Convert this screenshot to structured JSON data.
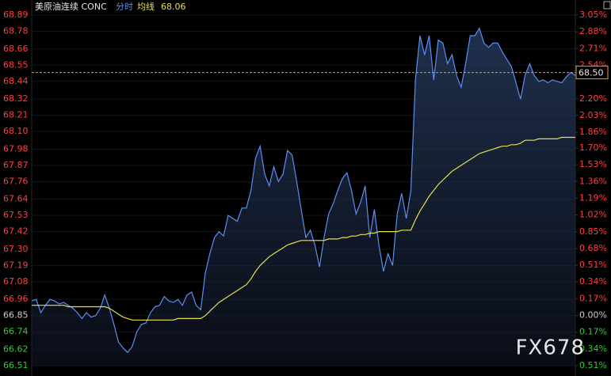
{
  "chart_data": {
    "type": "line",
    "title": "美原油连续 CONC",
    "series_label": "分时",
    "avg_label": "均线",
    "avg_value_label": "68.06",
    "watermark": "FX678",
    "grid": true,
    "up_color": "#ff4040",
    "down_color": "#33cc33",
    "flat_color": "#cfcfcf",
    "ylim": [
      66.51,
      68.89
    ],
    "yticks": [
      68.89,
      68.78,
      68.66,
      68.55,
      68.44,
      68.32,
      68.21,
      {
        "value": 68.1,
        "label": "68.10"
      },
      67.98,
      67.87,
      67.76,
      67.64,
      67.53,
      67.42,
      {
        "value": 67.3,
        "label": "67.30"
      },
      67.19,
      67.08,
      66.96,
      66.85,
      66.74,
      66.62,
      66.51
    ],
    "y2lim": [
      -0.51,
      3.05
    ],
    "y2ticks": [
      {
        "value": 3.05,
        "label": "3.05%"
      },
      {
        "value": 2.88,
        "label": "2.88%"
      },
      {
        "value": 2.71,
        "label": "2.71%"
      },
      {
        "value": 2.54,
        "label": "2.54%"
      },
      {
        "value": 2.2,
        "label": "2.20%"
      },
      {
        "value": 2.03,
        "label": "2.03%"
      },
      {
        "value": 1.86,
        "label": "1.86%"
      },
      {
        "value": 1.7,
        "label": "1.70%"
      },
      {
        "value": 1.53,
        "label": "1.53%"
      },
      {
        "value": 1.36,
        "label": "1.36%"
      },
      {
        "value": 1.19,
        "label": "1.19%"
      },
      {
        "value": 1.02,
        "label": "1.02%"
      },
      {
        "value": 0.85,
        "label": "0.85%"
      },
      {
        "value": 0.68,
        "label": "0.68%"
      },
      {
        "value": 0.51,
        "label": "0.51%"
      },
      {
        "value": 0.34,
        "label": "0.34%"
      },
      {
        "value": 0.17,
        "label": "0.17%"
      },
      {
        "value": 0,
        "label": "0.00%"
      },
      {
        "value": -0.17,
        "label": "0.17%"
      },
      {
        "value": -0.34,
        "label": "0.34%"
      },
      {
        "value": -0.51,
        "label": "0.51%"
      }
    ],
    "last_price": {
      "value": 68.5,
      "label": "68.50"
    },
    "series": [
      {
        "name": "分时",
        "color": "#5b8ff0",
        "fill": true,
        "values": [
          66.95,
          66.96,
          66.87,
          66.92,
          66.96,
          66.95,
          66.93,
          66.94,
          66.92,
          66.9,
          66.87,
          66.83,
          66.87,
          66.84,
          66.85,
          66.9,
          66.99,
          66.9,
          66.79,
          66.67,
          66.63,
          66.6,
          66.64,
          66.74,
          66.79,
          66.8,
          66.87,
          66.91,
          66.92,
          66.98,
          66.95,
          66.94,
          66.96,
          66.92,
          66.99,
          67.01,
          66.92,
          66.89,
          67.14,
          67.27,
          67.38,
          67.42,
          67.39,
          67.53,
          67.51,
          67.49,
          67.58,
          67.58,
          67.7,
          67.92,
          68.0,
          67.81,
          67.73,
          67.86,
          67.76,
          67.81,
          67.97,
          67.94,
          67.76,
          67.57,
          67.38,
          67.43,
          67.33,
          67.18,
          67.38,
          67.54,
          67.61,
          67.7,
          67.78,
          67.82,
          67.7,
          67.54,
          67.62,
          67.73,
          67.38,
          67.57,
          67.33,
          67.15,
          67.27,
          67.19,
          67.54,
          67.68,
          67.51,
          67.7,
          68.45,
          68.75,
          68.62,
          68.75,
          68.45,
          68.72,
          68.7,
          68.56,
          68.62,
          68.48,
          68.4,
          68.56,
          68.75,
          68.75,
          68.8,
          68.7,
          68.67,
          68.7,
          68.7,
          68.64,
          68.59,
          68.54,
          68.43,
          68.32,
          68.48,
          68.56,
          68.48,
          68.44,
          68.45,
          68.43,
          68.45,
          68.44,
          68.43,
          68.47,
          68.5,
          68.48
        ]
      },
      {
        "name": "均线",
        "color": "#e8e04a",
        "fill": false,
        "values": [
          66.92,
          66.92,
          66.92,
          66.92,
          66.92,
          66.92,
          66.92,
          66.92,
          66.91,
          66.91,
          66.91,
          66.91,
          66.91,
          66.91,
          66.91,
          66.91,
          66.91,
          66.9,
          66.88,
          66.86,
          66.84,
          66.83,
          66.82,
          66.82,
          66.82,
          66.82,
          66.82,
          66.82,
          66.82,
          66.82,
          66.82,
          66.82,
          66.83,
          66.83,
          66.83,
          66.83,
          66.83,
          66.83,
          66.85,
          66.88,
          66.91,
          66.94,
          66.96,
          66.98,
          67.0,
          67.02,
          67.04,
          67.06,
          67.1,
          67.15,
          67.19,
          67.22,
          67.25,
          67.27,
          67.29,
          67.31,
          67.33,
          67.34,
          67.35,
          67.36,
          67.36,
          67.36,
          67.36,
          67.36,
          67.36,
          67.37,
          67.37,
          67.37,
          67.38,
          67.38,
          67.39,
          67.39,
          67.4,
          67.4,
          67.41,
          67.41,
          67.42,
          67.42,
          67.42,
          67.42,
          67.42,
          67.43,
          67.43,
          67.43,
          67.5,
          67.56,
          67.61,
          67.66,
          67.7,
          67.74,
          67.77,
          67.8,
          67.83,
          67.85,
          67.87,
          67.89,
          67.91,
          67.93,
          67.95,
          67.96,
          67.97,
          67.98,
          67.99,
          68.0,
          68.0,
          68.01,
          68.01,
          68.02,
          68.04,
          68.04,
          68.04,
          68.05,
          68.05,
          68.05,
          68.05,
          68.05,
          68.06,
          68.06,
          68.06,
          68.06
        ]
      }
    ]
  }
}
